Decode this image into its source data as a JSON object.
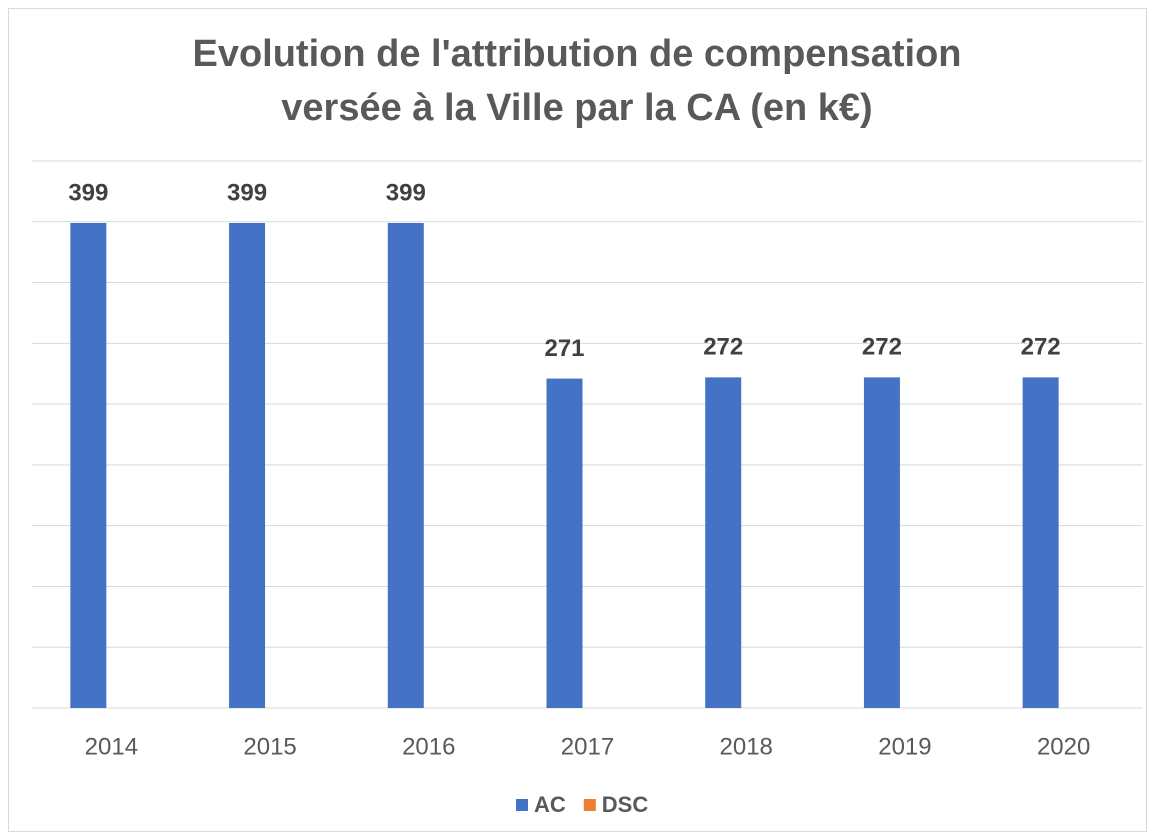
{
  "chart_data": {
    "type": "bar",
    "title": [
      "Evolution de l'attribution de compensation",
      "versée à la Ville par la CA (en k€)"
    ],
    "categories": [
      "2014",
      "2015",
      "2016",
      "2017",
      "2018",
      "2019",
      "2020"
    ],
    "series": [
      {
        "name": "AC",
        "color": "#4472c4",
        "values": [
          399,
          399,
          399,
          271,
          272,
          272,
          272
        ]
      },
      {
        "name": "DSC",
        "color": "#ed7d31",
        "values": [
          null,
          null,
          null,
          null,
          null,
          null,
          null
        ]
      }
    ],
    "ylim": [
      0,
      450
    ],
    "yticks": [
      0,
      50,
      100,
      150,
      200,
      250,
      300,
      350,
      400,
      450
    ],
    "grid": true,
    "legend": "bottom"
  }
}
